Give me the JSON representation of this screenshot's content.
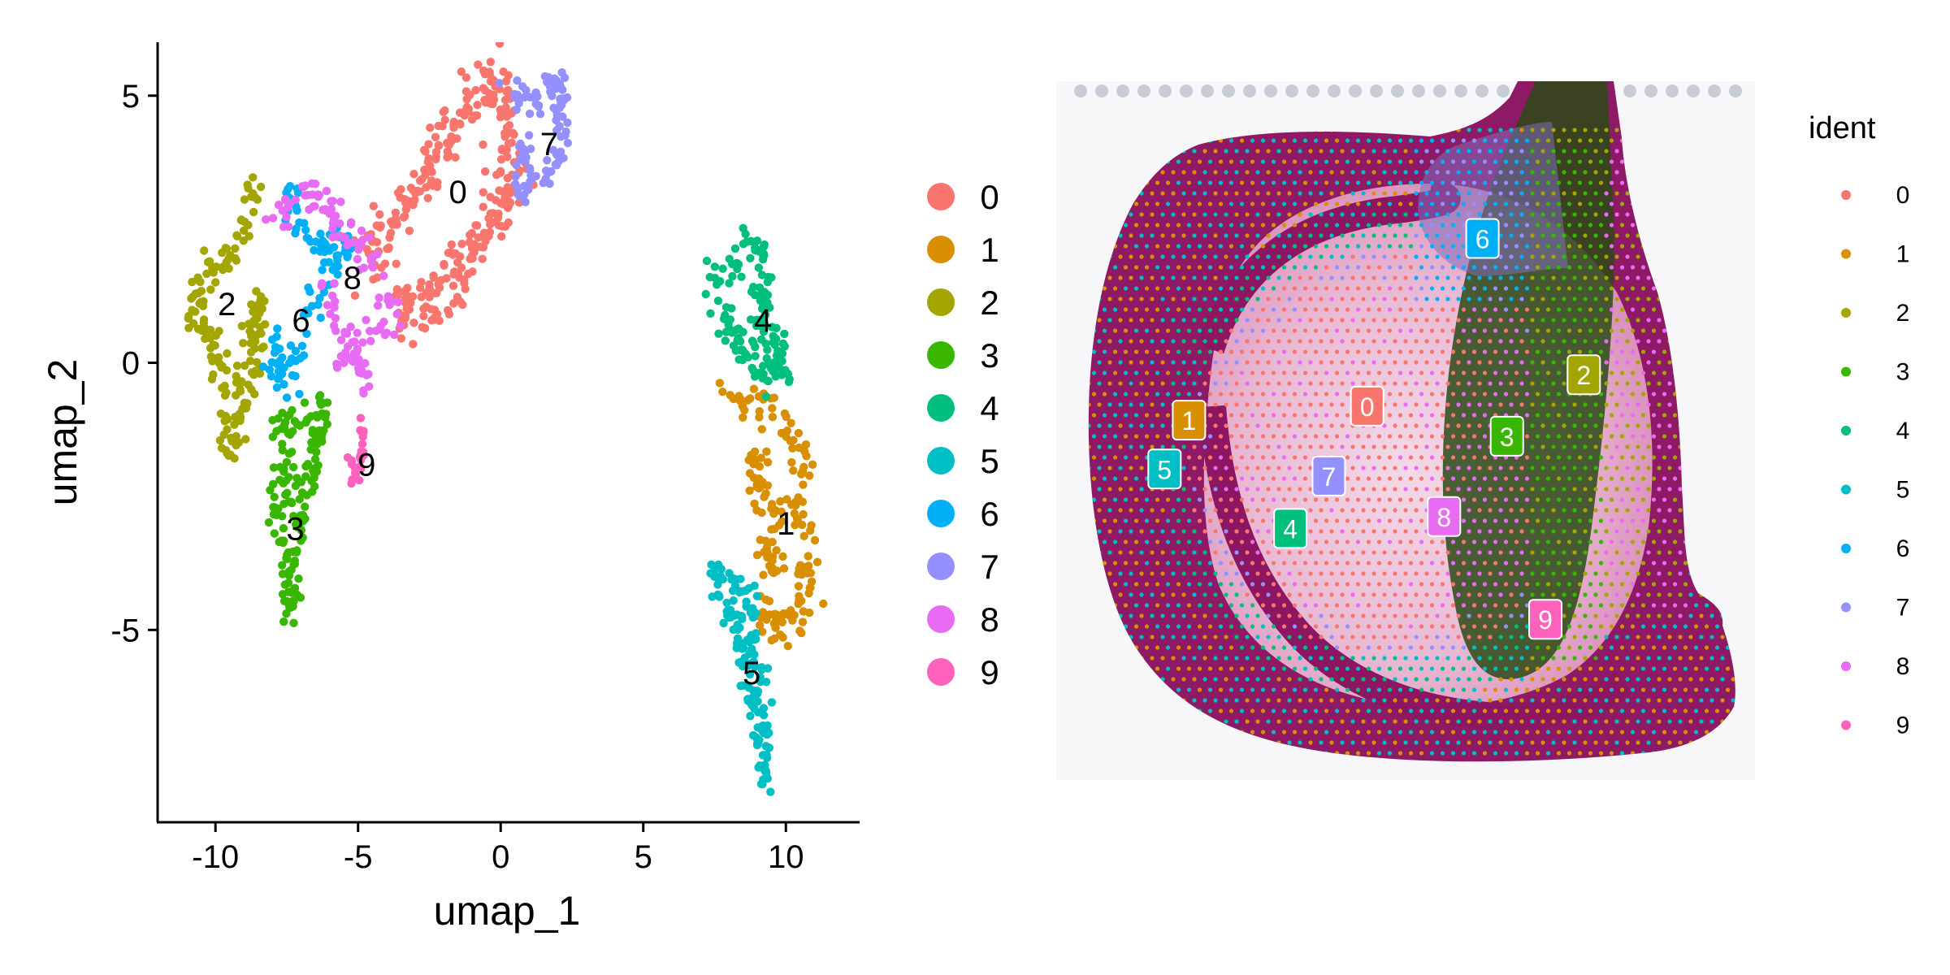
{
  "palette": {
    "0": "#F8766D",
    "1": "#D89000",
    "2": "#A3A500",
    "3": "#39B600",
    "4": "#00BF7D",
    "5": "#00BFC4",
    "6": "#00B0F6",
    "7": "#9590FF",
    "8": "#E76BF3",
    "9": "#FF62BC"
  },
  "chart_data": [
    {
      "type": "scatter",
      "title": "",
      "xlabel": "umap_1",
      "ylabel": "umap_2",
      "xlim": [
        -12,
        12.5
      ],
      "ylim": [
        -8.6,
        6.0
      ],
      "xticks": [
        "-10",
        "-5",
        "0",
        "5",
        "10"
      ],
      "yticks": [
        "5",
        "0",
        "-5"
      ],
      "grid": false,
      "legend_position": "right",
      "legend_items": [
        "0",
        "1",
        "2",
        "3",
        "4",
        "5",
        "6",
        "7",
        "8",
        "9"
      ],
      "series": [
        {
          "name": "0",
          "centroid": [
            -1.5,
            3.2
          ],
          "label_at": [
            -1.5,
            3.2
          ],
          "n_points": 320,
          "path": [
            [
              -4.8,
              1.9
            ],
            [
              -3.6,
              2.8
            ],
            [
              -2.3,
              3.8
            ],
            [
              -1.2,
              4.8
            ],
            [
              -0.4,
              5.3
            ],
            [
              0.2,
              4.8
            ],
            [
              0.7,
              3.5
            ],
            [
              -0.5,
              2.6
            ],
            [
              -1.6,
              1.6
            ],
            [
              -2.7,
              0.9
            ],
            [
              -3.6,
              1.1
            ]
          ],
          "spread": 0.45
        },
        {
          "name": "1",
          "centroid": [
            9.9,
            -2.6
          ],
          "label_at": [
            10.0,
            -3.0
          ],
          "n_points": 180,
          "path": [
            [
              8.0,
              -0.6
            ],
            [
              8.5,
              -0.9
            ],
            [
              9.4,
              -0.7
            ],
            [
              10.3,
              -1.3
            ],
            [
              10.6,
              -2.0
            ],
            [
              10.1,
              -2.7
            ],
            [
              10.7,
              -3.3
            ],
            [
              10.8,
              -4.2
            ],
            [
              10.2,
              -4.8
            ],
            [
              9.1,
              -4.9
            ],
            [
              9.6,
              -3.8
            ],
            [
              9.0,
              -2.2
            ],
            [
              8.9,
              -1.6
            ]
          ],
          "spread": 0.35
        },
        {
          "name": "2",
          "centroid": [
            -9.6,
            1.1
          ],
          "label_at": [
            -9.6,
            1.1
          ],
          "n_points": 170,
          "path": [
            [
              -8.6,
              3.4
            ],
            [
              -8.9,
              2.7
            ],
            [
              -9.5,
              2.0
            ],
            [
              -10.4,
              1.6
            ],
            [
              -10.8,
              1.0
            ],
            [
              -10.1,
              0.4
            ],
            [
              -9.4,
              -0.5
            ],
            [
              -9.6,
              -1.3
            ],
            [
              -9.3,
              -1.6
            ],
            [
              -9.0,
              -0.6
            ],
            [
              -8.7,
              0.2
            ],
            [
              -8.6,
              1.4
            ]
          ],
          "spread": 0.32
        },
        {
          "name": "3",
          "centroid": [
            -7.2,
            -2.8
          ],
          "label_at": [
            -7.2,
            -3.1
          ],
          "n_points": 160,
          "path": [
            [
              -8.0,
              -1.3
            ],
            [
              -7.2,
              -1.0
            ],
            [
              -6.2,
              -0.9
            ],
            [
              -6.6,
              -1.8
            ],
            [
              -7.0,
              -2.5
            ],
            [
              -7.2,
              -3.2
            ],
            [
              -7.3,
              -4.0
            ],
            [
              -7.4,
              -4.8
            ],
            [
              -7.8,
              -2.6
            ],
            [
              -7.4,
              -1.6
            ]
          ],
          "spread": 0.3
        },
        {
          "name": "4",
          "centroid": [
            9.0,
            0.9
          ],
          "label_at": [
            9.2,
            0.8
          ],
          "n_points": 140,
          "path": [
            [
              7.4,
              1.6
            ],
            [
              8.0,
              1.6
            ],
            [
              8.7,
              2.2
            ],
            [
              9.3,
              1.6
            ],
            [
              9.1,
              0.8
            ],
            [
              9.7,
              0.4
            ],
            [
              9.9,
              -0.2
            ],
            [
              9.0,
              0.0
            ],
            [
              8.2,
              0.4
            ],
            [
              7.8,
              1.0
            ]
          ],
          "spread": 0.3
        },
        {
          "name": "5",
          "centroid": [
            9.0,
            -5.7
          ],
          "label_at": [
            8.8,
            -5.8
          ],
          "n_points": 140,
          "path": [
            [
              7.3,
              -3.9
            ],
            [
              8.2,
              -4.1
            ],
            [
              8.8,
              -4.6
            ],
            [
              8.6,
              -5.3
            ],
            [
              9.1,
              -5.8
            ],
            [
              9.3,
              -6.5
            ],
            [
              9.2,
              -7.2
            ],
            [
              9.3,
              -7.9
            ],
            [
              8.9,
              -6.2
            ],
            [
              8.3,
              -5.0
            ],
            [
              7.6,
              -4.5
            ]
          ],
          "spread": 0.28
        },
        {
          "name": "6",
          "centroid": [
            -7.0,
            1.1
          ],
          "label_at": [
            -7.0,
            0.8
          ],
          "n_points": 110,
          "path": [
            [
              -7.4,
              3.3
            ],
            [
              -7.2,
              2.4
            ],
            [
              -6.2,
              2.1
            ],
            [
              -5.3,
              2.2
            ],
            [
              -6.1,
              1.4
            ],
            [
              -6.9,
              0.8
            ],
            [
              -7.4,
              -0.2
            ],
            [
              -8.1,
              -0.4
            ],
            [
              -7.7,
              0.6
            ]
          ],
          "spread": 0.3
        },
        {
          "name": "7",
          "centroid": [
            1.5,
            4.2
          ],
          "label_at": [
            1.7,
            4.1
          ],
          "n_points": 100,
          "path": [
            [
              0.3,
              5.0
            ],
            [
              1.2,
              4.9
            ],
            [
              2.0,
              5.2
            ],
            [
              2.3,
              4.5
            ],
            [
              1.9,
              3.6
            ],
            [
              1.2,
              3.3
            ],
            [
              0.6,
              3.2
            ],
            [
              0.9,
              4.2
            ]
          ],
          "spread": 0.25
        },
        {
          "name": "8",
          "centroid": [
            -5.5,
            2.0
          ],
          "label_at": [
            -5.2,
            1.6
          ],
          "n_points": 130,
          "path": [
            [
              -8.0,
              2.6
            ],
            [
              -7.1,
              3.2
            ],
            [
              -6.3,
              3.2
            ],
            [
              -5.5,
              2.5
            ],
            [
              -4.5,
              1.9
            ],
            [
              -3.7,
              1.3
            ],
            [
              -4.3,
              0.6
            ],
            [
              -5.1,
              0.4
            ],
            [
              -4.8,
              -0.6
            ],
            [
              -5.8,
              0.9
            ],
            [
              -6.2,
              1.8
            ]
          ],
          "spread": 0.3
        },
        {
          "name": "9",
          "centroid": [
            -4.9,
            -1.8
          ],
          "label_at": [
            -4.7,
            -1.9
          ],
          "n_points": 25,
          "path": [
            [
              -5.0,
              -0.9
            ],
            [
              -4.8,
              -1.4
            ],
            [
              -4.9,
              -2.0
            ],
            [
              -5.2,
              -2.2
            ],
            [
              -5.3,
              -1.6
            ]
          ],
          "spread": 0.15
        }
      ]
    },
    {
      "type": "spatial",
      "title": "",
      "legend_title": "ident",
      "legend_position": "right",
      "legend_items": [
        "0",
        "1",
        "2",
        "3",
        "4",
        "5",
        "6",
        "7",
        "8",
        "9"
      ],
      "cluster_labels": [
        {
          "name": "0",
          "pos": [
            0.445,
            0.465
          ]
        },
        {
          "name": "1",
          "pos": [
            0.19,
            0.485
          ]
        },
        {
          "name": "2",
          "pos": [
            0.755,
            0.42
          ]
        },
        {
          "name": "3",
          "pos": [
            0.645,
            0.508
          ]
        },
        {
          "name": "4",
          "pos": [
            0.335,
            0.64
          ]
        },
        {
          "name": "5",
          "pos": [
            0.155,
            0.555
          ]
        },
        {
          "name": "6",
          "pos": [
            0.61,
            0.225
          ]
        },
        {
          "name": "7",
          "pos": [
            0.39,
            0.565
          ]
        },
        {
          "name": "8",
          "pos": [
            0.555,
            0.623
          ]
        },
        {
          "name": "9",
          "pos": [
            0.7,
            0.77
          ]
        }
      ]
    }
  ]
}
